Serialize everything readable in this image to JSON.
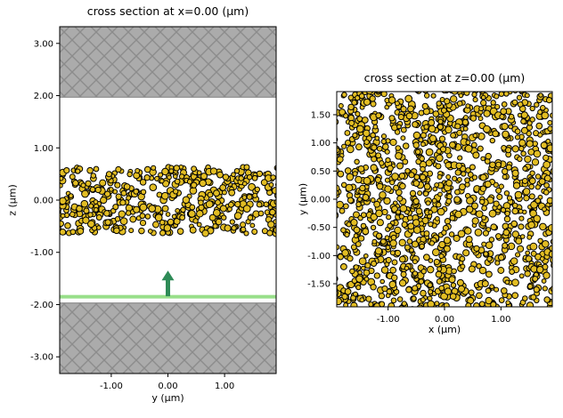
{
  "style": {
    "background": "#ffffff",
    "text_color": "#000000",
    "frame_color": "#000000",
    "particle_fill": "#e2bd23",
    "particle_edge": "#000000",
    "particle_radius_um": [
      0.036,
      0.062
    ],
    "pml_fill": "#ababab",
    "pml_hatch_color": "#8c8c8c",
    "source_color": "#98df8a",
    "arrow_color": "#2e8b57"
  },
  "chart_data": [
    {
      "type": "scatter",
      "panel": "left",
      "title": "cross section at x=0.00 (μm)",
      "xlabel": "y (μm)",
      "ylabel": "z (μm)",
      "xlim": [
        -1.91,
        1.91
      ],
      "ylim": [
        -3.32,
        3.32
      ],
      "xticks": {
        "values": [
          -1,
          0,
          1
        ],
        "labels": [
          "-1.00",
          "0.00",
          "1.00"
        ]
      },
      "yticks": {
        "values": [
          3,
          2,
          1,
          0,
          -1,
          -2,
          -3
        ],
        "labels": [
          "3.00",
          "2.00",
          "1.00",
          "0.00",
          "-1.00",
          "-2.00",
          "-3.00"
        ]
      },
      "regions": [
        {
          "name": "pml-top",
          "z0": 1.97,
          "z1": 3.32,
          "hatch": "X"
        },
        {
          "name": "pml-bottom",
          "z0": -3.32,
          "z1": -1.97,
          "hatch": "X"
        }
      ],
      "particle_band": {
        "z_min": -0.66,
        "z_max": 0.66,
        "count": 470,
        "seed": 20240117
      },
      "source_line": {
        "z": -1.85,
        "thickness_px": 4
      },
      "arrow": {
        "y": 0,
        "z_tail": -1.84,
        "z_tip": -1.35,
        "direction": "+z"
      }
    },
    {
      "type": "scatter",
      "panel": "right",
      "title": "cross section at z=0.00 (μm)",
      "xlabel": "x (μm)",
      "ylabel": "y (μm)",
      "xlim": [
        -1.91,
        1.91
      ],
      "ylim": [
        -1.91,
        1.91
      ],
      "xticks": {
        "values": [
          -1,
          0,
          1
        ],
        "labels": [
          "-1.00",
          "0.00",
          "1.00"
        ]
      },
      "yticks": {
        "values": [
          1.5,
          1.0,
          0.5,
          0,
          -0.5,
          -1.0,
          -1.5
        ],
        "labels": [
          "1.50",
          "1.00",
          "0.50",
          "0.00",
          "-0.50",
          "-1.00",
          "-1.50"
        ]
      },
      "particles": {
        "count": 1350,
        "seed": 987654
      }
    }
  ]
}
